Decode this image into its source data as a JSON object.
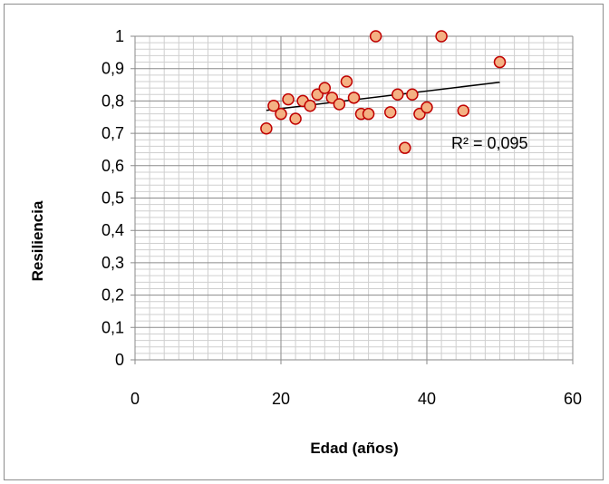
{
  "chart_data": {
    "type": "scatter",
    "xlabel": "Edad (años)",
    "ylabel": "Resiliencia",
    "xlim": [
      0,
      60
    ],
    "ylim": [
      0,
      1
    ],
    "x_ticks": [
      "0",
      "20",
      "40",
      "60"
    ],
    "y_ticks": [
      "0",
      "0,1",
      "0,2",
      "0,3",
      "0,4",
      "0,5",
      "0,6",
      "0,7",
      "0,8",
      "0,9",
      "1"
    ],
    "grid": true,
    "marker_fill": "#f4b183",
    "marker_edge": "#c00000",
    "trendline_color": "#000000",
    "series": [
      {
        "points": [
          {
            "x": 18,
            "y": 0.715
          },
          {
            "x": 19,
            "y": 0.785
          },
          {
            "x": 20,
            "y": 0.76
          },
          {
            "x": 21,
            "y": 0.805
          },
          {
            "x": 22,
            "y": 0.745
          },
          {
            "x": 23,
            "y": 0.8
          },
          {
            "x": 24,
            "y": 0.785
          },
          {
            "x": 25,
            "y": 0.82
          },
          {
            "x": 26,
            "y": 0.84
          },
          {
            "x": 27,
            "y": 0.81
          },
          {
            "x": 28,
            "y": 0.79
          },
          {
            "x": 29,
            "y": 0.86
          },
          {
            "x": 30,
            "y": 0.81
          },
          {
            "x": 31,
            "y": 0.76
          },
          {
            "x": 32,
            "y": 0.76
          },
          {
            "x": 33,
            "y": 1.0
          },
          {
            "x": 35,
            "y": 0.765
          },
          {
            "x": 36,
            "y": 0.82
          },
          {
            "x": 37,
            "y": 0.655
          },
          {
            "x": 38,
            "y": 0.82
          },
          {
            "x": 39,
            "y": 0.76
          },
          {
            "x": 40,
            "y": 0.78
          },
          {
            "x": 42,
            "y": 1.0
          },
          {
            "x": 45,
            "y": 0.77
          },
          {
            "x": 50,
            "y": 0.92
          }
        ]
      }
    ],
    "trendline": {
      "x": [
        18,
        50
      ],
      "y": [
        0.771,
        0.858
      ]
    },
    "annotation": "R² = 0,095"
  }
}
